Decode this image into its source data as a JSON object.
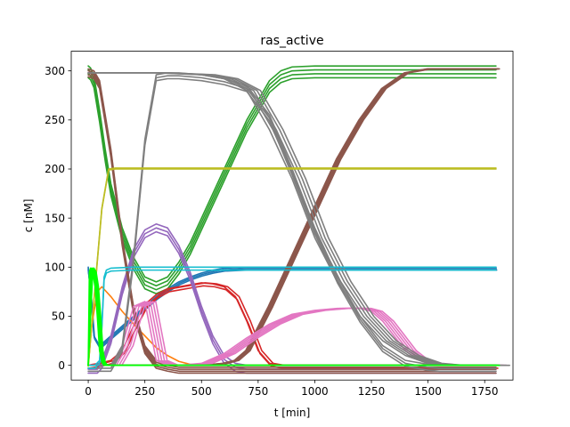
{
  "chart_data": {
    "type": "line",
    "title": "ras_active",
    "xlabel": "t [min]",
    "ylabel": "c [nM]",
    "xlim": [
      -75,
      1875
    ],
    "ylim": [
      -15,
      320
    ],
    "xticks": [
      0,
      250,
      500,
      750,
      1000,
      1250,
      1500,
      1750
    ],
    "yticks": [
      0,
      50,
      100,
      150,
      200,
      250,
      300
    ],
    "grid": false,
    "legend": "none",
    "series": [
      {
        "color": "#1f77b4",
        "ensemble": [
          [
            0,
            0
          ],
          [
            1.5,
            -1.5
          ],
          [
            3,
            -3
          ]
        ],
        "x": [
          0,
          12,
          25,
          50,
          100,
          150,
          200,
          250,
          300,
          350,
          400,
          450,
          500,
          550,
          600,
          700,
          800,
          1000,
          1200,
          1500,
          1800
        ],
        "y": [
          100,
          70,
          30,
          20,
          30,
          40,
          50,
          60,
          70,
          78,
          85,
          90,
          94,
          97,
          99,
          100,
          100,
          100,
          100,
          100,
          100
        ]
      },
      {
        "color": "#ff7f0e",
        "ensemble": [
          [
            0,
            0
          ]
        ],
        "x": [
          0,
          15,
          40,
          60,
          100,
          150,
          200,
          250,
          300,
          350,
          400,
          450,
          500,
          550,
          600,
          700,
          800,
          1000,
          1800
        ],
        "y": [
          0,
          40,
          75,
          80,
          70,
          55,
          42,
          30,
          18,
          10,
          4,
          1,
          0,
          0,
          0,
          0,
          0,
          0,
          0
        ]
      },
      {
        "color": "#2ca02c",
        "ensemble": [
          [
            0,
            0
          ],
          [
            0,
            -4
          ],
          [
            0,
            -8
          ],
          [
            0,
            -12
          ]
        ],
        "x": [
          0,
          10,
          25,
          50,
          75,
          100,
          150,
          200,
          250,
          300,
          350,
          400,
          450,
          500,
          550,
          600,
          650,
          700,
          750,
          800,
          850,
          900,
          1000,
          1200,
          1500,
          1800
        ],
        "y": [
          305,
          303,
          295,
          260,
          220,
          185,
          140,
          110,
          90,
          85,
          90,
          105,
          125,
          150,
          175,
          200,
          225,
          250,
          270,
          290,
          300,
          304,
          305,
          305,
          305,
          305
        ]
      },
      {
        "color": "#d62728",
        "ensemble": [
          [
            0,
            0
          ],
          [
            8,
            -3
          ],
          [
            16,
            0
          ]
        ],
        "x": [
          0,
          20,
          50,
          100,
          150,
          200,
          250,
          300,
          350,
          400,
          450,
          500,
          550,
          600,
          650,
          700,
          750,
          800,
          850,
          900,
          1000,
          1800
        ],
        "y": [
          0,
          1,
          2,
          5,
          15,
          40,
          62,
          72,
          78,
          80,
          82,
          84,
          83,
          80,
          70,
          45,
          15,
          2,
          0,
          0,
          0,
          0
        ]
      },
      {
        "color": "#9467bd",
        "ensemble": [
          [
            0,
            0
          ],
          [
            0,
            -4
          ],
          [
            0,
            -8
          ]
        ],
        "x": [
          0,
          40,
          60,
          100,
          150,
          200,
          250,
          300,
          350,
          400,
          450,
          500,
          550,
          600,
          650,
          700,
          750,
          1800
        ],
        "y": [
          0,
          0,
          5,
          30,
          80,
          118,
          138,
          144,
          140,
          122,
          95,
          60,
          30,
          10,
          2,
          0,
          0,
          0
        ]
      },
      {
        "color": "#8c564b",
        "ensemble": [
          [
            0,
            0
          ],
          [
            0,
            -2
          ],
          [
            0,
            -4
          ],
          [
            0,
            -6
          ],
          [
            0,
            -8
          ]
        ],
        "x": [
          0,
          25,
          50,
          100,
          150,
          200,
          250,
          300,
          350,
          400,
          500,
          600,
          800,
          1000,
          1100,
          1200,
          1300,
          1400,
          1450,
          1500,
          1550,
          1600,
          1800
        ],
        "y": [
          302,
          300,
          290,
          220,
          130,
          60,
          20,
          5,
          2,
          0,
          0,
          0,
          0,
          0,
          0,
          0,
          0,
          0,
          0,
          0,
          0,
          0,
          0
        ]
      },
      {
        "color": "#8c564b",
        "ensemble": [
          [
            0,
            0
          ],
          [
            5,
            0
          ],
          [
            10,
            0
          ],
          [
            15,
            0
          ],
          [
            -5,
            0
          ]
        ],
        "x": [
          0,
          500,
          600,
          650,
          700,
          800,
          900,
          1000,
          1100,
          1200,
          1300,
          1400,
          1500,
          1550,
          1600,
          1800
        ],
        "y": [
          0,
          0,
          2,
          5,
          15,
          60,
          110,
          160,
          210,
          250,
          282,
          298,
          302,
          302,
          302,
          302
        ]
      },
      {
        "color": "#e377c2",
        "ensemble": [
          [
            0,
            0
          ],
          [
            12,
            0
          ],
          [
            24,
            0
          ],
          [
            36,
            0
          ],
          [
            48,
            0
          ]
        ],
        "x": [
          0,
          100,
          150,
          200,
          250,
          300,
          350,
          400,
          500,
          600,
          700,
          800,
          900,
          1000,
          1100,
          1200,
          1250,
          1300,
          1350,
          1400,
          1450,
          1500,
          1550,
          1600,
          1800
        ],
        "y": [
          0,
          0,
          20,
          60,
          65,
          5,
          0,
          0,
          2,
          12,
          28,
          42,
          52,
          56,
          58,
          58,
          55,
          45,
          30,
          15,
          6,
          2,
          0,
          0,
          0
        ]
      },
      {
        "color": "#7f7f7f",
        "ensemble": [
          [
            0,
            0
          ],
          [
            0,
            -3
          ],
          [
            0,
            -6
          ]
        ],
        "x": [
          0,
          100,
          150,
          200,
          250,
          300,
          350,
          400,
          500,
          600,
          700,
          800,
          900,
          1000,
          1100,
          1200,
          1300,
          1400,
          1500,
          1550,
          1600,
          1650,
          1700,
          1800
        ],
        "y": [
          0,
          0,
          20,
          110,
          230,
          296,
          298,
          298,
          296,
          292,
          285,
          255,
          200,
          140,
          90,
          50,
          20,
          5,
          1,
          0,
          0,
          0,
          0,
          0
        ]
      },
      {
        "color": "#7f7f7f",
        "ensemble": [
          [
            0,
            0
          ],
          [
            15,
            0
          ],
          [
            30,
            0
          ],
          [
            45,
            0
          ],
          [
            60,
            0
          ]
        ],
        "x": [
          0,
          300,
          500,
          600,
          700,
          800,
          900,
          1000,
          1100,
          1200,
          1300,
          1400,
          1500,
          1600,
          1800
        ],
        "y": [
          298,
          298,
          296,
          292,
          280,
          240,
          190,
          130,
          85,
          50,
          25,
          10,
          2,
          0,
          0
        ]
      },
      {
        "color": "#bcbd22",
        "ensemble": [
          [
            0,
            0
          ],
          [
            0,
            -1
          ]
        ],
        "x": [
          0,
          30,
          60,
          90,
          120,
          300,
          1000,
          1800
        ],
        "y": [
          0,
          80,
          160,
          200,
          201,
          201,
          201,
          201
        ]
      },
      {
        "color": "#17becf",
        "ensemble": [
          [
            0,
            0
          ],
          [
            0,
            -3
          ]
        ],
        "x": [
          0,
          30,
          50,
          60,
          70,
          80,
          100,
          200,
          500,
          1800
        ],
        "y": [
          0,
          0,
          5,
          40,
          90,
          97,
          99,
          100,
          100,
          100
        ]
      },
      {
        "color": "#00ff00",
        "ensemble": [
          [
            0,
            0
          ],
          [
            5,
            0
          ],
          [
            10,
            0
          ],
          [
            15,
            0
          ]
        ],
        "x": [
          0,
          5,
          10,
          20,
          30,
          40,
          50,
          60,
          70,
          80,
          100,
          1800
        ],
        "y": [
          0,
          95,
          99,
          95,
          80,
          50,
          15,
          3,
          0,
          0,
          0,
          0
        ]
      }
    ]
  }
}
